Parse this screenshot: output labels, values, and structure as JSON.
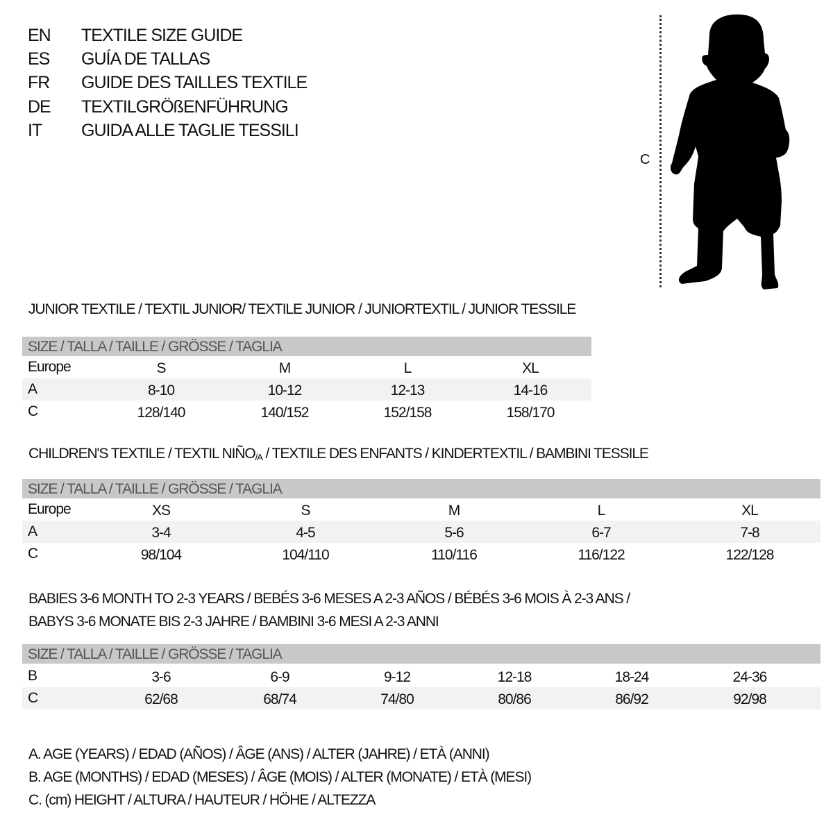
{
  "titles": [
    {
      "lang": "EN",
      "text": "TEXTILE SIZE GUIDE"
    },
    {
      "lang": "ES",
      "text": "GUÍA DE TALLAS"
    },
    {
      "lang": "FR",
      "text": "GUIDE DES TAILLES TEXTILE"
    },
    {
      "lang": "DE",
      "text": "TEXTILGRÖßENFÜHRUNG"
    },
    {
      "lang": "IT",
      "text": "GUIDA ALLE TAGLIE TESSILI"
    }
  ],
  "figure": {
    "measure_label": "C",
    "icon": "child-silhouette"
  },
  "junior": {
    "heading": "JUNIOR TEXTILE / TEXTIL JUNIOR/ TEXTILE JUNIOR / JUNIORTEXTIL / JUNIOR TESSILE",
    "size_header": "SIZE / TALLA / TAILLE / GRÖSSE / TAGLIA",
    "rows": [
      {
        "label": "Europe",
        "values": [
          "S",
          "M",
          "L",
          "XL"
        ]
      },
      {
        "label": "A",
        "values": [
          "8-10",
          "10-12",
          "12-13",
          "14-16"
        ]
      },
      {
        "label": "C",
        "values": [
          "128/140",
          "140/152",
          "152/158",
          "158/170"
        ]
      }
    ]
  },
  "children": {
    "heading_pre": "CHILDREN'S TEXTILE / TEXTIL NIÑO",
    "heading_sub": "/A",
    "heading_post": " / TEXTILE DES ENFANTS / KINDERTEXTIL / BAMBINI TESSILE",
    "size_header": "SIZE / TALLA / TAILLE / GRÖSSE / TAGLIA",
    "rows": [
      {
        "label": "Europe",
        "values": [
          "XS",
          "S",
          "M",
          "L",
          "XL"
        ]
      },
      {
        "label": "A",
        "values": [
          "3-4",
          "4-5",
          "5-6",
          "6-7",
          "7-8"
        ]
      },
      {
        "label": "C",
        "values": [
          "98/104",
          "104/110",
          "110/116",
          "116/122",
          "122/128"
        ]
      }
    ]
  },
  "babies": {
    "heading_line1": "BABIES 3-6 MONTH TO 2-3 YEARS / BEBÉS 3-6 MESES A 2-3 AÑOS / BÉBÉS 3-6 MOIS À 2-3 ANS /",
    "heading_line2": "BABYS 3-6 MONATE BIS 2-3 JAHRE / BAMBINI 3-6 MESI A 2-3 ANNI",
    "size_header": "SIZE / TALLA / TAILLE / GRÖSSE / TAGLIA",
    "rows": [
      {
        "label": "B",
        "values": [
          "3-6",
          "6-9",
          "9-12",
          "12-18",
          "18-24",
          "24-36"
        ]
      },
      {
        "label": "C",
        "values": [
          "62/68",
          "68/74",
          "74/80",
          "80/86",
          "86/92",
          "92/98"
        ]
      }
    ]
  },
  "legend": [
    "A. AGE (YEARS) / EDAD (AÑOS) / ÂGE (ANS) / ALTER (JAHRE) / ETÀ (ANNI)",
    "B. AGE (MONTHS) / EDAD (MESES) / ÂGE (MOIS) / ALTER (MONATE) / ETÀ (MESI)",
    "C. (cm) HEIGHT / ALTURA / HAUTEUR / HÖHE / ALTEZZA"
  ]
}
